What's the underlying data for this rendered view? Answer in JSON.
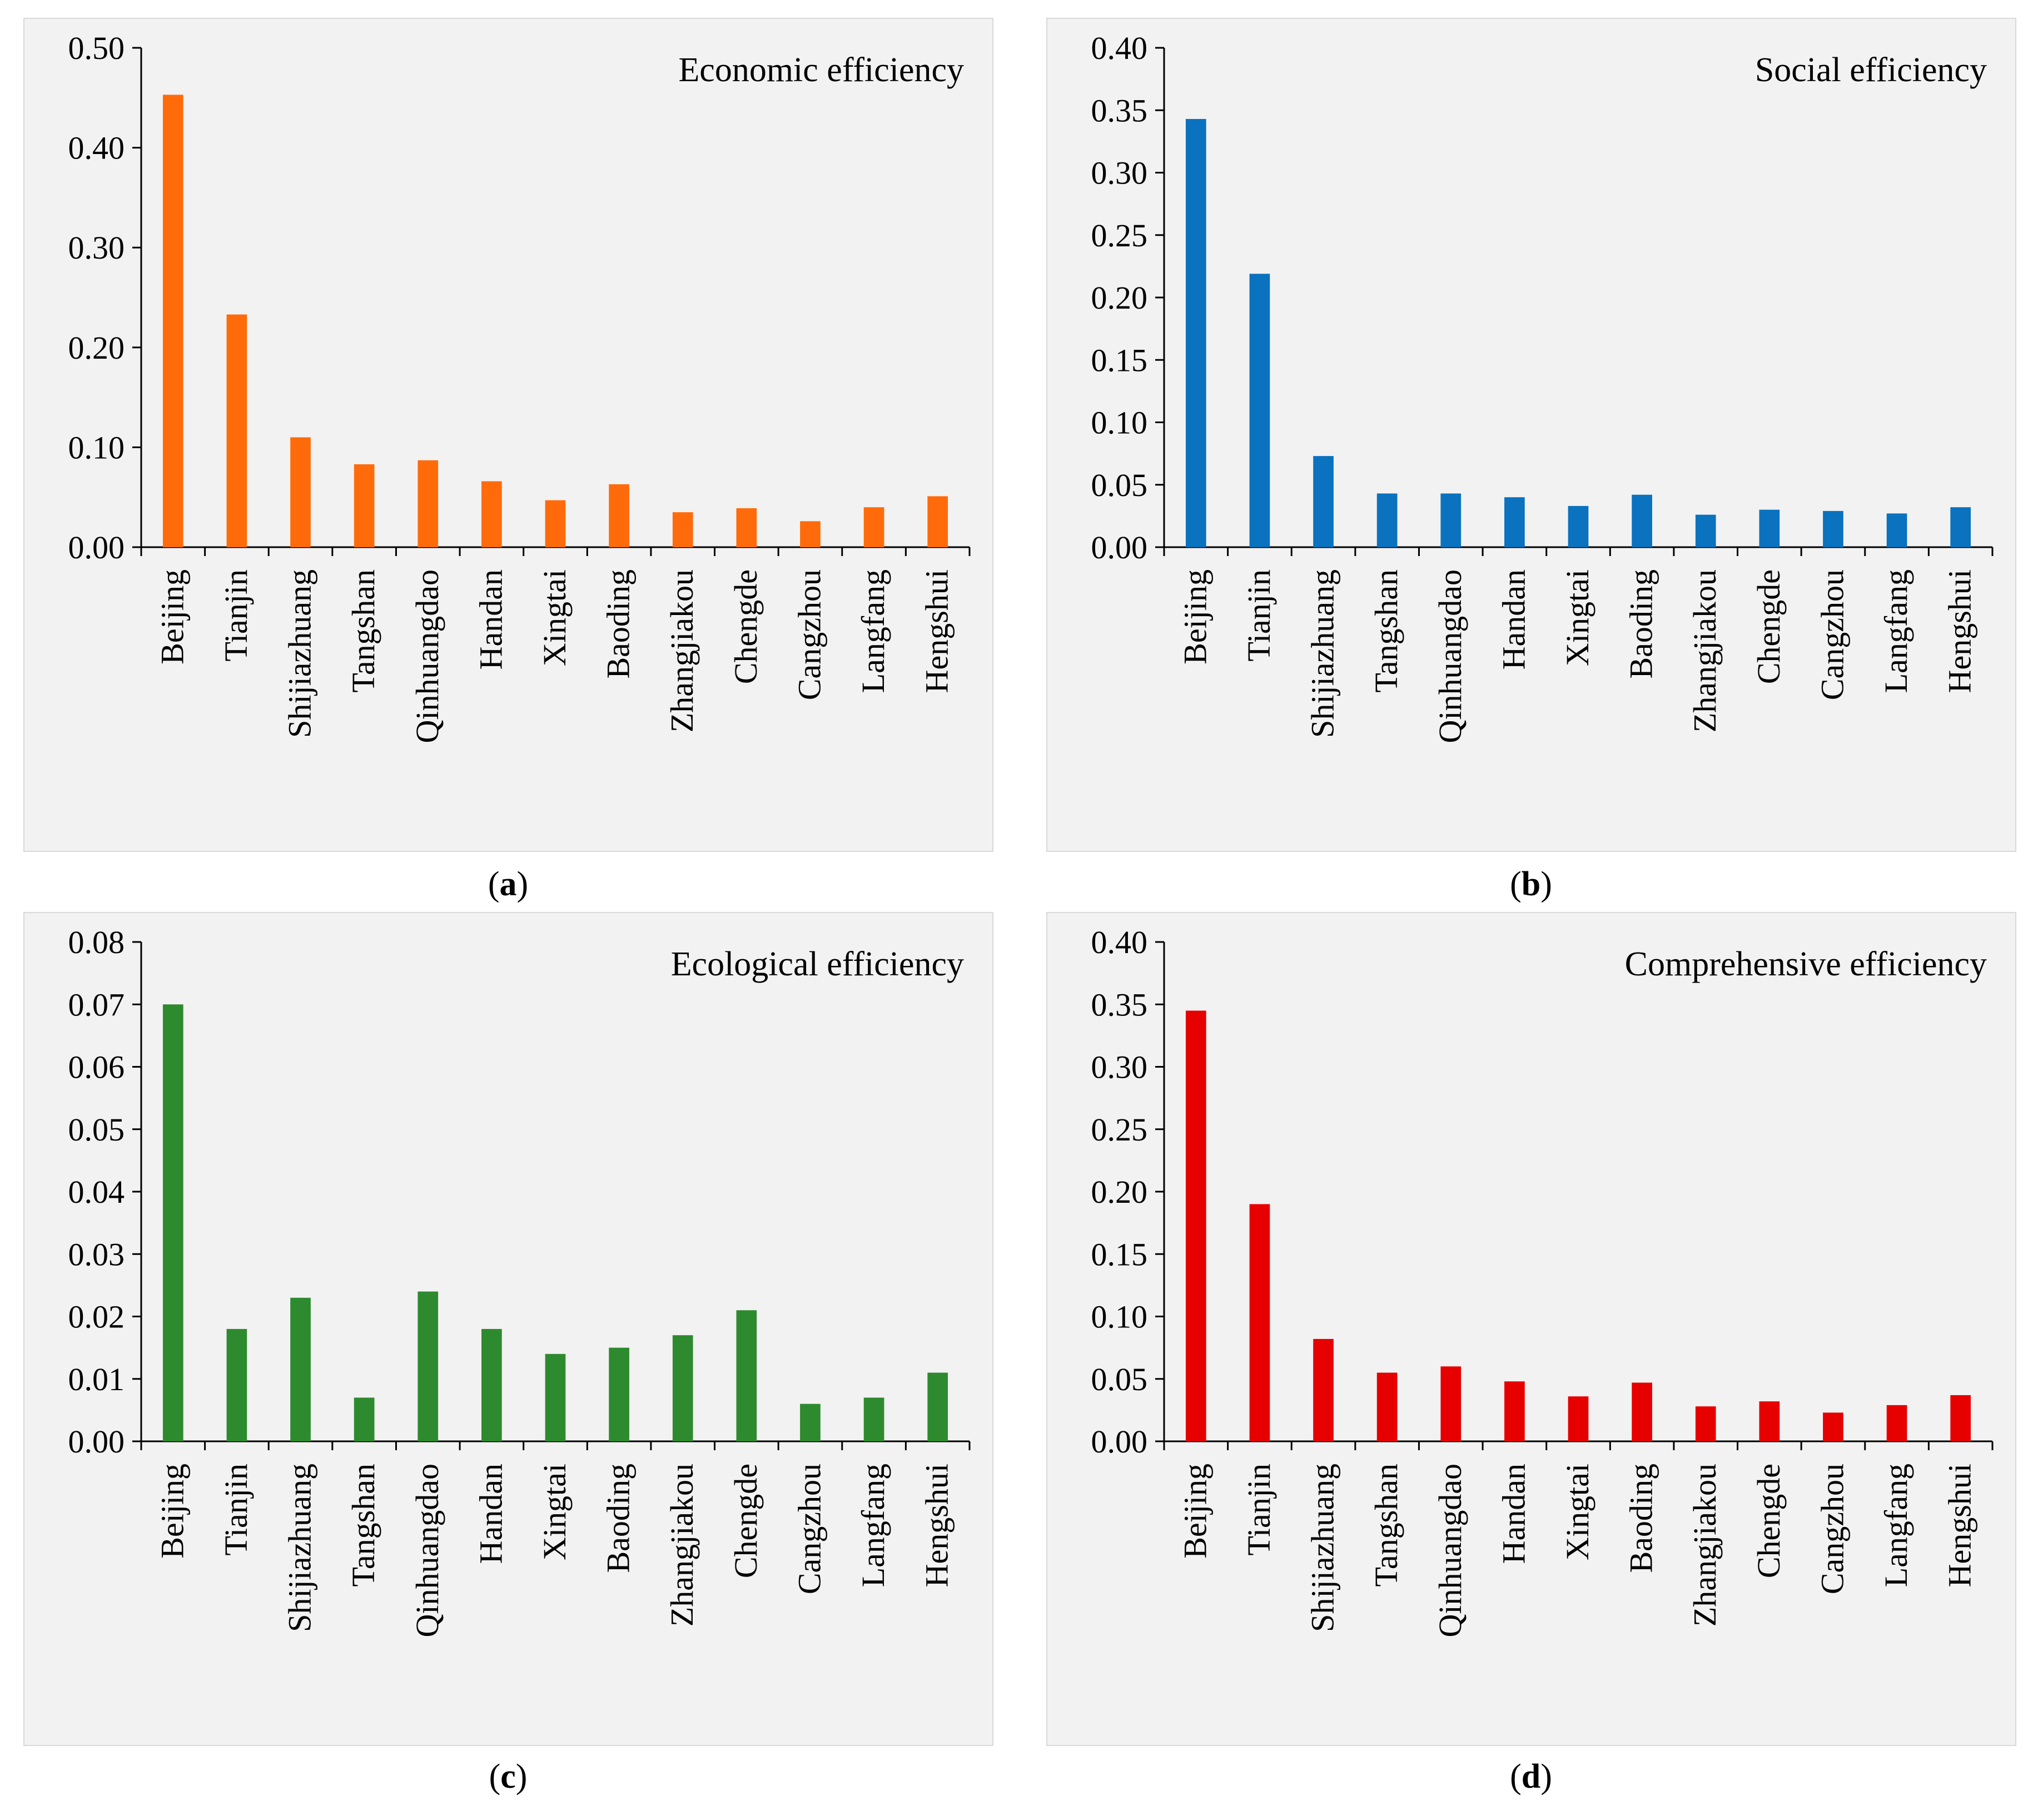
{
  "chart_data": [
    {
      "id": "a",
      "type": "bar",
      "title": "Economic efficiency",
      "caption": {
        "open": "(",
        "label": "a",
        "close": ")"
      },
      "color": "#ff6b0a",
      "categories": [
        "Beijing",
        "Tianjin",
        "Shijiazhuang",
        "Tangshan",
        "Qinhuangdao",
        "Handan",
        "Xingtai",
        "Baoding",
        "Zhangjiakou",
        "Chengde",
        "Cangzhou",
        "Langfang",
        "Hengshui"
      ],
      "values": [
        0.453,
        0.233,
        0.11,
        0.083,
        0.087,
        0.066,
        0.047,
        0.063,
        0.035,
        0.039,
        0.026,
        0.04,
        0.051
      ],
      "ylim": [
        0,
        0.5
      ],
      "yticks": [
        "0.00",
        "0.10",
        "0.20",
        "0.30",
        "0.40",
        "0.50"
      ],
      "xlabel": "",
      "ylabel": ""
    },
    {
      "id": "b",
      "type": "bar",
      "title": "Social efficiency",
      "caption": {
        "open": "(",
        "label": "b",
        "close": ")"
      },
      "color": "#0a72be",
      "categories": [
        "Beijing",
        "Tianjin",
        "Shijiazhuang",
        "Tangshan",
        "Qinhuangdao",
        "Handan",
        "Xingtai",
        "Baoding",
        "Zhangjiakou",
        "Chengde",
        "Cangzhou",
        "Langfang",
        "Hengshui"
      ],
      "values": [
        0.343,
        0.219,
        0.073,
        0.043,
        0.043,
        0.04,
        0.033,
        0.042,
        0.026,
        0.03,
        0.029,
        0.027,
        0.032
      ],
      "ylim": [
        0,
        0.4
      ],
      "yticks": [
        "0.00",
        "0.05",
        "0.10",
        "0.15",
        "0.20",
        "0.25",
        "0.30",
        "0.35",
        "0.40"
      ],
      "xlabel": "",
      "ylabel": ""
    },
    {
      "id": "c",
      "type": "bar",
      "title": "Ecological efficiency",
      "caption": {
        "open": "(",
        "label": "c",
        "close": ")"
      },
      "color": "#2e8a2e",
      "categories": [
        "Beijing",
        "Tianjin",
        "Shijiazhuang",
        "Tangshan",
        "Qinhuangdao",
        "Handan",
        "Xingtai",
        "Baoding",
        "Zhangjiakou",
        "Chengde",
        "Cangzhou",
        "Langfang",
        "Hengshui"
      ],
      "values": [
        0.07,
        0.018,
        0.023,
        0.007,
        0.024,
        0.018,
        0.014,
        0.015,
        0.017,
        0.021,
        0.006,
        0.007,
        0.011
      ],
      "ylim": [
        0,
        0.08
      ],
      "yticks": [
        "0.00",
        "0.01",
        "0.02",
        "0.03",
        "0.04",
        "0.05",
        "0.06",
        "0.07",
        "0.08"
      ],
      "xlabel": "",
      "ylabel": ""
    },
    {
      "id": "d",
      "type": "bar",
      "title": "Comprehensive efficiency",
      "caption": {
        "open": "(",
        "label": "d",
        "close": ")"
      },
      "color": "#e60000",
      "categories": [
        "Beijing",
        "Tianjin",
        "Shijiazhuang",
        "Tangshan",
        "Qinhuangdao",
        "Handan",
        "Xingtai",
        "Baoding",
        "Zhangjiakou",
        "Chengde",
        "Cangzhou",
        "Langfang",
        "Hengshui"
      ],
      "values": [
        0.345,
        0.19,
        0.082,
        0.055,
        0.06,
        0.048,
        0.036,
        0.047,
        0.028,
        0.032,
        0.023,
        0.029,
        0.037
      ],
      "ylim": [
        0,
        0.4
      ],
      "yticks": [
        "0.00",
        "0.05",
        "0.10",
        "0.15",
        "0.20",
        "0.25",
        "0.30",
        "0.35",
        "0.40"
      ],
      "xlabel": "",
      "ylabel": ""
    }
  ]
}
